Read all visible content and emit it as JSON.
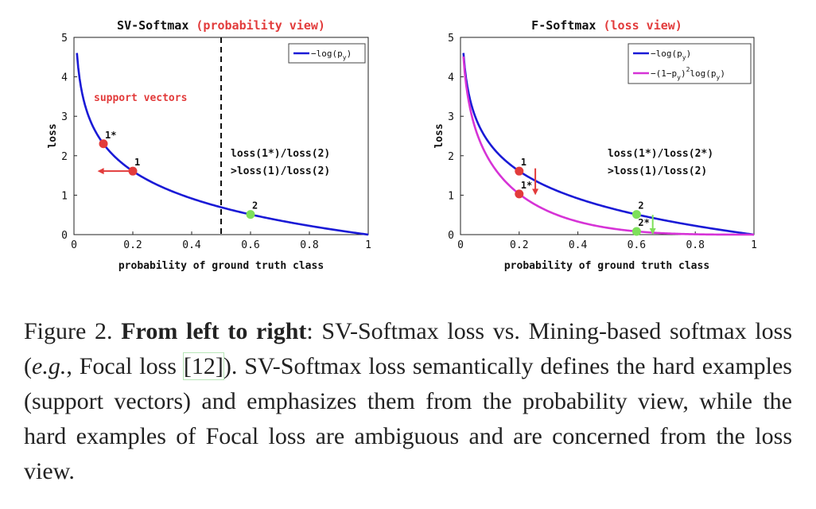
{
  "chart_data": [
    {
      "type": "line",
      "title_main": "SV-Softmax",
      "title_view": "(probability view)",
      "xlabel": "probability of ground truth class",
      "ylabel": "loss",
      "xlim": [
        0,
        1
      ],
      "ylim": [
        0,
        5
      ],
      "xticks": [
        "0",
        "0.2",
        "0.4",
        "0.6",
        "0.8",
        "1"
      ],
      "yticks": [
        "0",
        "1",
        "2",
        "3",
        "4",
        "5"
      ],
      "series": [
        {
          "name": "-log(p_y)",
          "legend_main": "−log(p",
          "legend_sub": "y",
          "legend_end": ")",
          "color": "#1a1ad6",
          "func": "neglog",
          "x_start": 0.01
        }
      ],
      "vline_x": 0.5,
      "region_label": "support vectors",
      "points": [
        {
          "label": "1*",
          "x": 0.1,
          "y": 2.3026,
          "color": "#e23b3b"
        },
        {
          "label": "1",
          "x": 0.2,
          "y": 1.6094,
          "color": "#e23b3b"
        },
        {
          "label": "2",
          "x": 0.6,
          "y": 0.5108,
          "color": "#7ee05a"
        }
      ],
      "arrow": {
        "from_x": 0.2,
        "to_x": 0.08,
        "y": 1.6094
      },
      "annotation": [
        "loss(1*)/loss(2)",
        ">loss(1)/loss(2)"
      ]
    },
    {
      "type": "line",
      "title_main": "F-Softmax",
      "title_view": "(loss view)",
      "xlabel": "probability of ground truth class",
      "ylabel": "loss",
      "xlim": [
        0,
        1
      ],
      "ylim": [
        0,
        5
      ],
      "xticks": [
        "0",
        "0.2",
        "0.4",
        "0.6",
        "0.8",
        "1"
      ],
      "yticks": [
        "0",
        "1",
        "2",
        "3",
        "4",
        "5"
      ],
      "series": [
        {
          "name": "-log(p_y)",
          "legend_main": "−log(p",
          "legend_sub": "y",
          "legend_end": ")",
          "color": "#1a1ad6",
          "func": "neglog",
          "x_start": 0.01
        },
        {
          "name": "-(1-p_y)^2 log(p_y)",
          "legend_main": "−(1−p",
          "legend_sub": "y",
          "legend_end": ")",
          "legend_sup": "2",
          "legend_tail": "log(p",
          "legend_sub2": "y",
          "legend_end2": ")",
          "color": "#d633d6",
          "func": "focal",
          "x_start": 0.01
        }
      ],
      "points": [
        {
          "label": "1",
          "x": 0.2,
          "y": 1.6094,
          "color": "#e23b3b"
        },
        {
          "label": "1*",
          "x": 0.2,
          "y": 1.03,
          "color": "#e23b3b"
        },
        {
          "label": "2",
          "x": 0.6,
          "y": 0.5108,
          "color": "#7ee05a"
        },
        {
          "label": "2*",
          "x": 0.6,
          "y": 0.0817,
          "color": "#7ee05a"
        }
      ],
      "arrows": [
        {
          "x": 0.255,
          "from_y": 1.68,
          "to_y": 1.0,
          "color": "#e23b3b"
        },
        {
          "x": 0.655,
          "from_y": 0.5,
          "to_y": 0.0,
          "color": "#7ee05a"
        }
      ],
      "annotation": [
        "loss(1*)/loss(2*)",
        ">loss(1)/loss(2)"
      ]
    }
  ],
  "caption": {
    "prefix": "Figure 2. ",
    "bold": "From left to right",
    "part1": ": SV-Softmax loss vs. Mining-based softmax loss (",
    "italic": "e.g.",
    "part2": ", Focal loss ",
    "ref": "[12]",
    "part3": "). SV-Softmax loss semantically defines the hard examples (support vectors) and emphasizes them from the probability view, while the hard examples of Focal loss are ambiguous and are concerned from the loss view."
  }
}
